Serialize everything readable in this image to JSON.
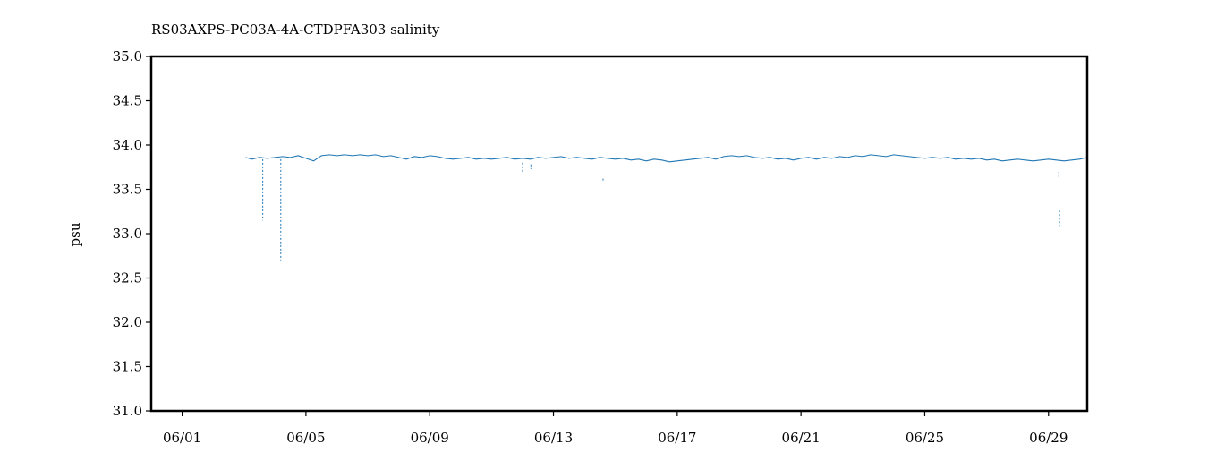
{
  "chart_data": {
    "type": "line",
    "title": "RS03AXPS-PC03A-4A-CTDPFA303 salinity",
    "xlabel": "",
    "ylabel": "psu",
    "ylim": [
      31.0,
      35.0
    ],
    "xlim": [
      "05-31 00:00",
      "06-30 06:00"
    ],
    "x_tick_labels": [
      "06/01",
      "06/05",
      "06/09",
      "06/13",
      "06/17",
      "06/21",
      "06/25",
      "06/29"
    ],
    "y_tick_labels": [
      "31.0",
      "31.5",
      "32.0",
      "32.5",
      "33.0",
      "33.5",
      "34.0",
      "34.5",
      "35.0"
    ],
    "grid": false,
    "legend": "none",
    "color": "#1f77b4",
    "series": [
      {
        "name": "",
        "x": [
          "06-03 01:12",
          "06-03 06:00",
          "06-03 12:00",
          "06-03 18:00",
          "06-04 00:00",
          "06-04 06:00",
          "06-04 12:00",
          "06-04 18:00",
          "06-05 00:00",
          "06-05 06:00",
          "06-05 12:00",
          "06-05 18:00",
          "06-06 00:00",
          "06-06 06:00",
          "06-06 12:00",
          "06-06 18:00",
          "06-07 00:00",
          "06-07 06:00",
          "06-07 12:00",
          "06-07 18:00",
          "06-08 00:00",
          "06-08 06:00",
          "06-08 12:00",
          "06-08 18:00",
          "06-09 00:00",
          "06-09 06:00",
          "06-09 12:00",
          "06-09 18:00",
          "06-10 00:00",
          "06-10 06:00",
          "06-10 12:00",
          "06-10 18:00",
          "06-11 00:00",
          "06-11 06:00",
          "06-11 12:00",
          "06-11 18:00",
          "06-12 00:00",
          "06-12 06:00",
          "06-12 12:00",
          "06-12 18:00",
          "06-13 00:00",
          "06-13 06:00",
          "06-13 12:00",
          "06-13 18:00",
          "06-14 00:00",
          "06-14 06:00",
          "06-14 12:00",
          "06-14 18:00",
          "06-15 00:00",
          "06-15 06:00",
          "06-15 12:00",
          "06-15 18:00",
          "06-16 00:00",
          "06-16 06:00",
          "06-16 12:00",
          "06-16 18:00",
          "06-17 00:00",
          "06-17 06:00",
          "06-17 12:00",
          "06-17 18:00",
          "06-18 00:00",
          "06-18 06:00",
          "06-18 12:00",
          "06-18 18:00",
          "06-19 00:00",
          "06-19 06:00",
          "06-19 12:00",
          "06-19 18:00",
          "06-20 00:00",
          "06-20 06:00",
          "06-20 12:00",
          "06-20 18:00",
          "06-21 00:00",
          "06-21 06:00",
          "06-21 12:00",
          "06-21 18:00",
          "06-22 00:00",
          "06-22 06:00",
          "06-22 12:00",
          "06-22 18:00",
          "06-23 00:00",
          "06-23 06:00",
          "06-23 12:00",
          "06-23 18:00",
          "06-24 00:00",
          "06-24 06:00",
          "06-24 12:00",
          "06-24 18:00",
          "06-25 00:00",
          "06-25 06:00",
          "06-25 12:00",
          "06-25 18:00",
          "06-26 00:00",
          "06-26 06:00",
          "06-26 12:00",
          "06-26 18:00",
          "06-27 00:00",
          "06-27 06:00",
          "06-27 12:00",
          "06-27 18:00",
          "06-28 00:00",
          "06-28 06:00",
          "06-28 12:00",
          "06-28 18:00",
          "06-29 00:00",
          "06-29 06:00",
          "06-29 12:00",
          "06-29 18:00",
          "06-30 00:00",
          "06-30 06:00"
        ],
        "y": [
          33.86,
          33.84,
          33.86,
          33.85,
          33.86,
          33.87,
          33.86,
          33.88,
          33.85,
          33.82,
          33.88,
          33.89,
          33.88,
          33.89,
          33.88,
          33.89,
          33.88,
          33.89,
          33.87,
          33.88,
          33.86,
          33.84,
          33.87,
          33.86,
          33.88,
          33.87,
          33.85,
          33.84,
          33.85,
          33.86,
          33.84,
          33.85,
          33.84,
          33.85,
          33.86,
          33.84,
          33.85,
          33.84,
          33.86,
          33.85,
          33.86,
          33.87,
          33.85,
          33.86,
          33.85,
          33.84,
          33.86,
          33.85,
          33.84,
          33.85,
          33.83,
          33.84,
          33.82,
          33.84,
          33.83,
          33.81,
          33.82,
          33.83,
          33.84,
          33.85,
          33.86,
          33.84,
          33.87,
          33.88,
          33.87,
          33.88,
          33.86,
          33.85,
          33.86,
          33.84,
          33.85,
          33.83,
          33.85,
          33.86,
          33.84,
          33.86,
          33.85,
          33.87,
          33.86,
          33.88,
          33.87,
          33.89,
          33.88,
          33.87,
          33.89,
          33.88,
          33.87,
          33.86,
          33.85,
          33.86,
          33.85,
          33.86,
          33.84,
          33.85,
          33.84,
          33.85,
          33.83,
          33.84,
          33.82,
          33.83,
          33.84,
          33.83,
          33.82,
          33.83,
          33.84,
          33.83,
          33.82,
          33.83,
          33.84,
          33.86
        ]
      }
    ],
    "spikes": [
      {
        "x": "06-03 14:30",
        "low": 33.15,
        "high": 33.84
      },
      {
        "x": "06-04 04:30",
        "low": 32.7,
        "high": 33.84
      },
      {
        "x": "06-12 00:00",
        "low": 33.7,
        "high": 33.8
      },
      {
        "x": "06-12 06:30",
        "low": 33.73,
        "high": 33.78
      },
      {
        "x": "06-14 14:30",
        "low": 33.6,
        "high": 33.62
      },
      {
        "x": "06-29 08:00",
        "low": 33.62,
        "high": 33.7
      },
      {
        "x": "06-29 08:30",
        "low": 33.07,
        "high": 33.26
      }
    ]
  }
}
